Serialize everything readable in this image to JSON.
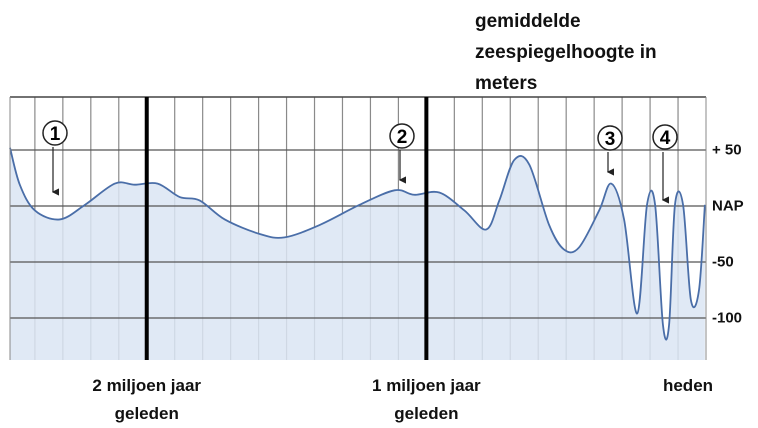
{
  "chart_data": {
    "type": "area",
    "y_label": "gemiddelde zeespiegelhoogte in meters",
    "x": [
      2.489,
      2.454,
      2.4,
      2.311,
      2.221,
      2.114,
      2.043,
      1.961,
      1.882,
      1.811,
      1.721,
      1.596,
      1.507,
      1.382,
      1.239,
      1.114,
      1.043,
      0.954,
      0.864,
      0.786,
      0.739,
      0.686,
      0.632,
      0.561,
      0.507,
      0.454,
      0.382,
      0.339,
      0.293,
      0.246,
      0.211,
      0.182,
      0.154,
      0.132,
      0.111,
      0.082,
      0.054,
      0.025,
      0.004
    ],
    "series": [
      {
        "color": "#4a6ea8",
        "values": [
          52,
          19,
          -4,
          -12,
          1,
          20,
          19,
          20,
          8,
          5,
          -12,
          -25,
          -28,
          -17,
          1,
          14,
          10,
          12,
          -4,
          -21,
          5,
          41,
          37,
          -17,
          -39,
          -37,
          -4,
          20,
          -12,
          -96,
          1,
          1,
          -106,
          -106,
          1,
          1,
          -84,
          -75,
          1
        ]
      }
    ],
    "fill": "#dbe5f3",
    "xlim": [
      2.489,
      0
    ],
    "xticks": [
      {
        "value": 2,
        "label": "2 miljoen jaar geleden"
      },
      {
        "value": 1,
        "label": "1 miljoen jaar geleden"
      },
      {
        "value": 0,
        "label": "heden"
      }
    ],
    "xminorticks": [
      2.4,
      2.3,
      2.2,
      2.1,
      1.9,
      1.8,
      1.7,
      1.6,
      1.5,
      1.4,
      1.3,
      1.2,
      1.1,
      0.9,
      0.8,
      0.7,
      0.6,
      0.5,
      0.4,
      0.3,
      0.2,
      0.1
    ],
    "ylim": [
      -137.5,
      97.3
    ],
    "yticks": [
      {
        "value": 50,
        "label": "+ 50"
      },
      {
        "value": 0,
        "label": "NAP"
      },
      -50,
      -100
    ],
    "grid": true,
    "annotations": [
      "1",
      "2",
      "3",
      "4"
    ]
  }
}
